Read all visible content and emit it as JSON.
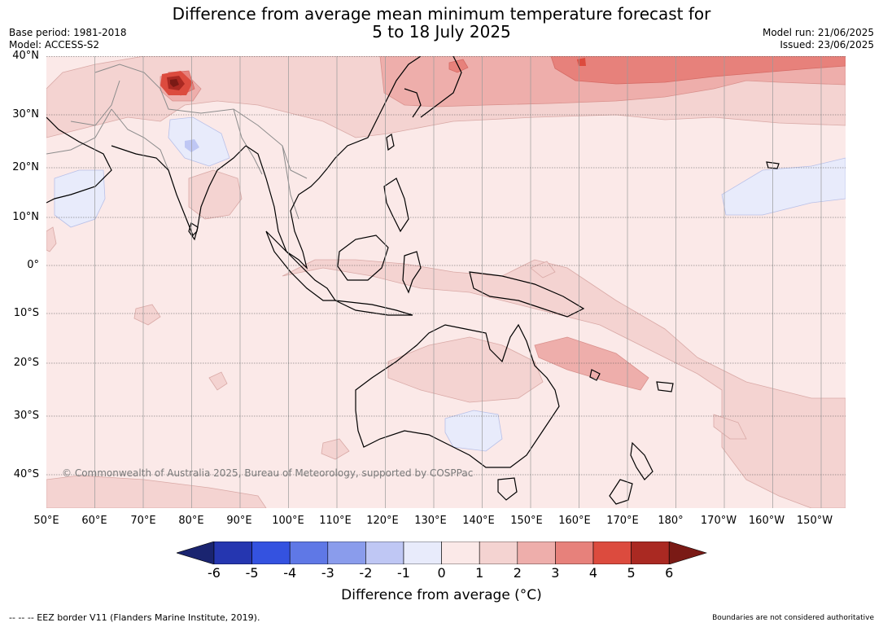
{
  "title": {
    "line1": "Difference from average mean minimum temperature forecast for",
    "line2": "5 to 18 July 2025"
  },
  "meta": {
    "base_period": "Base period: 1981-2018",
    "model": "Model: ACCESS-S2",
    "model_run": "Model run: 21/06/2025",
    "issued": "Issued: 23/06/2025"
  },
  "map": {
    "projection": "equirectangular",
    "lon_range": [
      50,
      215
    ],
    "lat_range": [
      -47,
      40
    ],
    "lat_labels": [
      "40°N",
      "30°N",
      "20°N",
      "10°N",
      "0°",
      "10°S",
      "20°S",
      "30°S",
      "40°S"
    ],
    "lon_labels": [
      "50°E",
      "60°E",
      "70°E",
      "80°E",
      "90°E",
      "100°E",
      "110°E",
      "120°E",
      "130°E",
      "140°E",
      "150°E",
      "160°E",
      "170°E",
      "180°",
      "170°W",
      "160°W",
      "150°W"
    ],
    "background_class": "0 to 1",
    "copyright": "© Commonwealth of Australia 2025, Bureau of Meteorology, supported by COSPPac"
  },
  "colorbar": {
    "ticks": [
      "-6",
      "-5",
      "-4",
      "-3",
      "-2",
      "-1",
      "0",
      "1",
      "2",
      "3",
      "4",
      "5",
      "6"
    ],
    "colors": [
      "#1a2470",
      "#2536b0",
      "#3452e0",
      "#5f78e6",
      "#8a9cec",
      "#bfc7f4",
      "#e8ebfb",
      "#fbe9e8",
      "#f4d3d1",
      "#eeaeab",
      "#e7817b",
      "#dc4b3e",
      "#aa2922",
      "#7a1a15"
    ],
    "label": "Difference from average (°C)"
  },
  "footer": {
    "eez_note": "--  --  -- EEZ border V11 (Flanders Marine Institute, 2019).",
    "boundaries_note": "Boundaries are not considered authoritative"
  }
}
